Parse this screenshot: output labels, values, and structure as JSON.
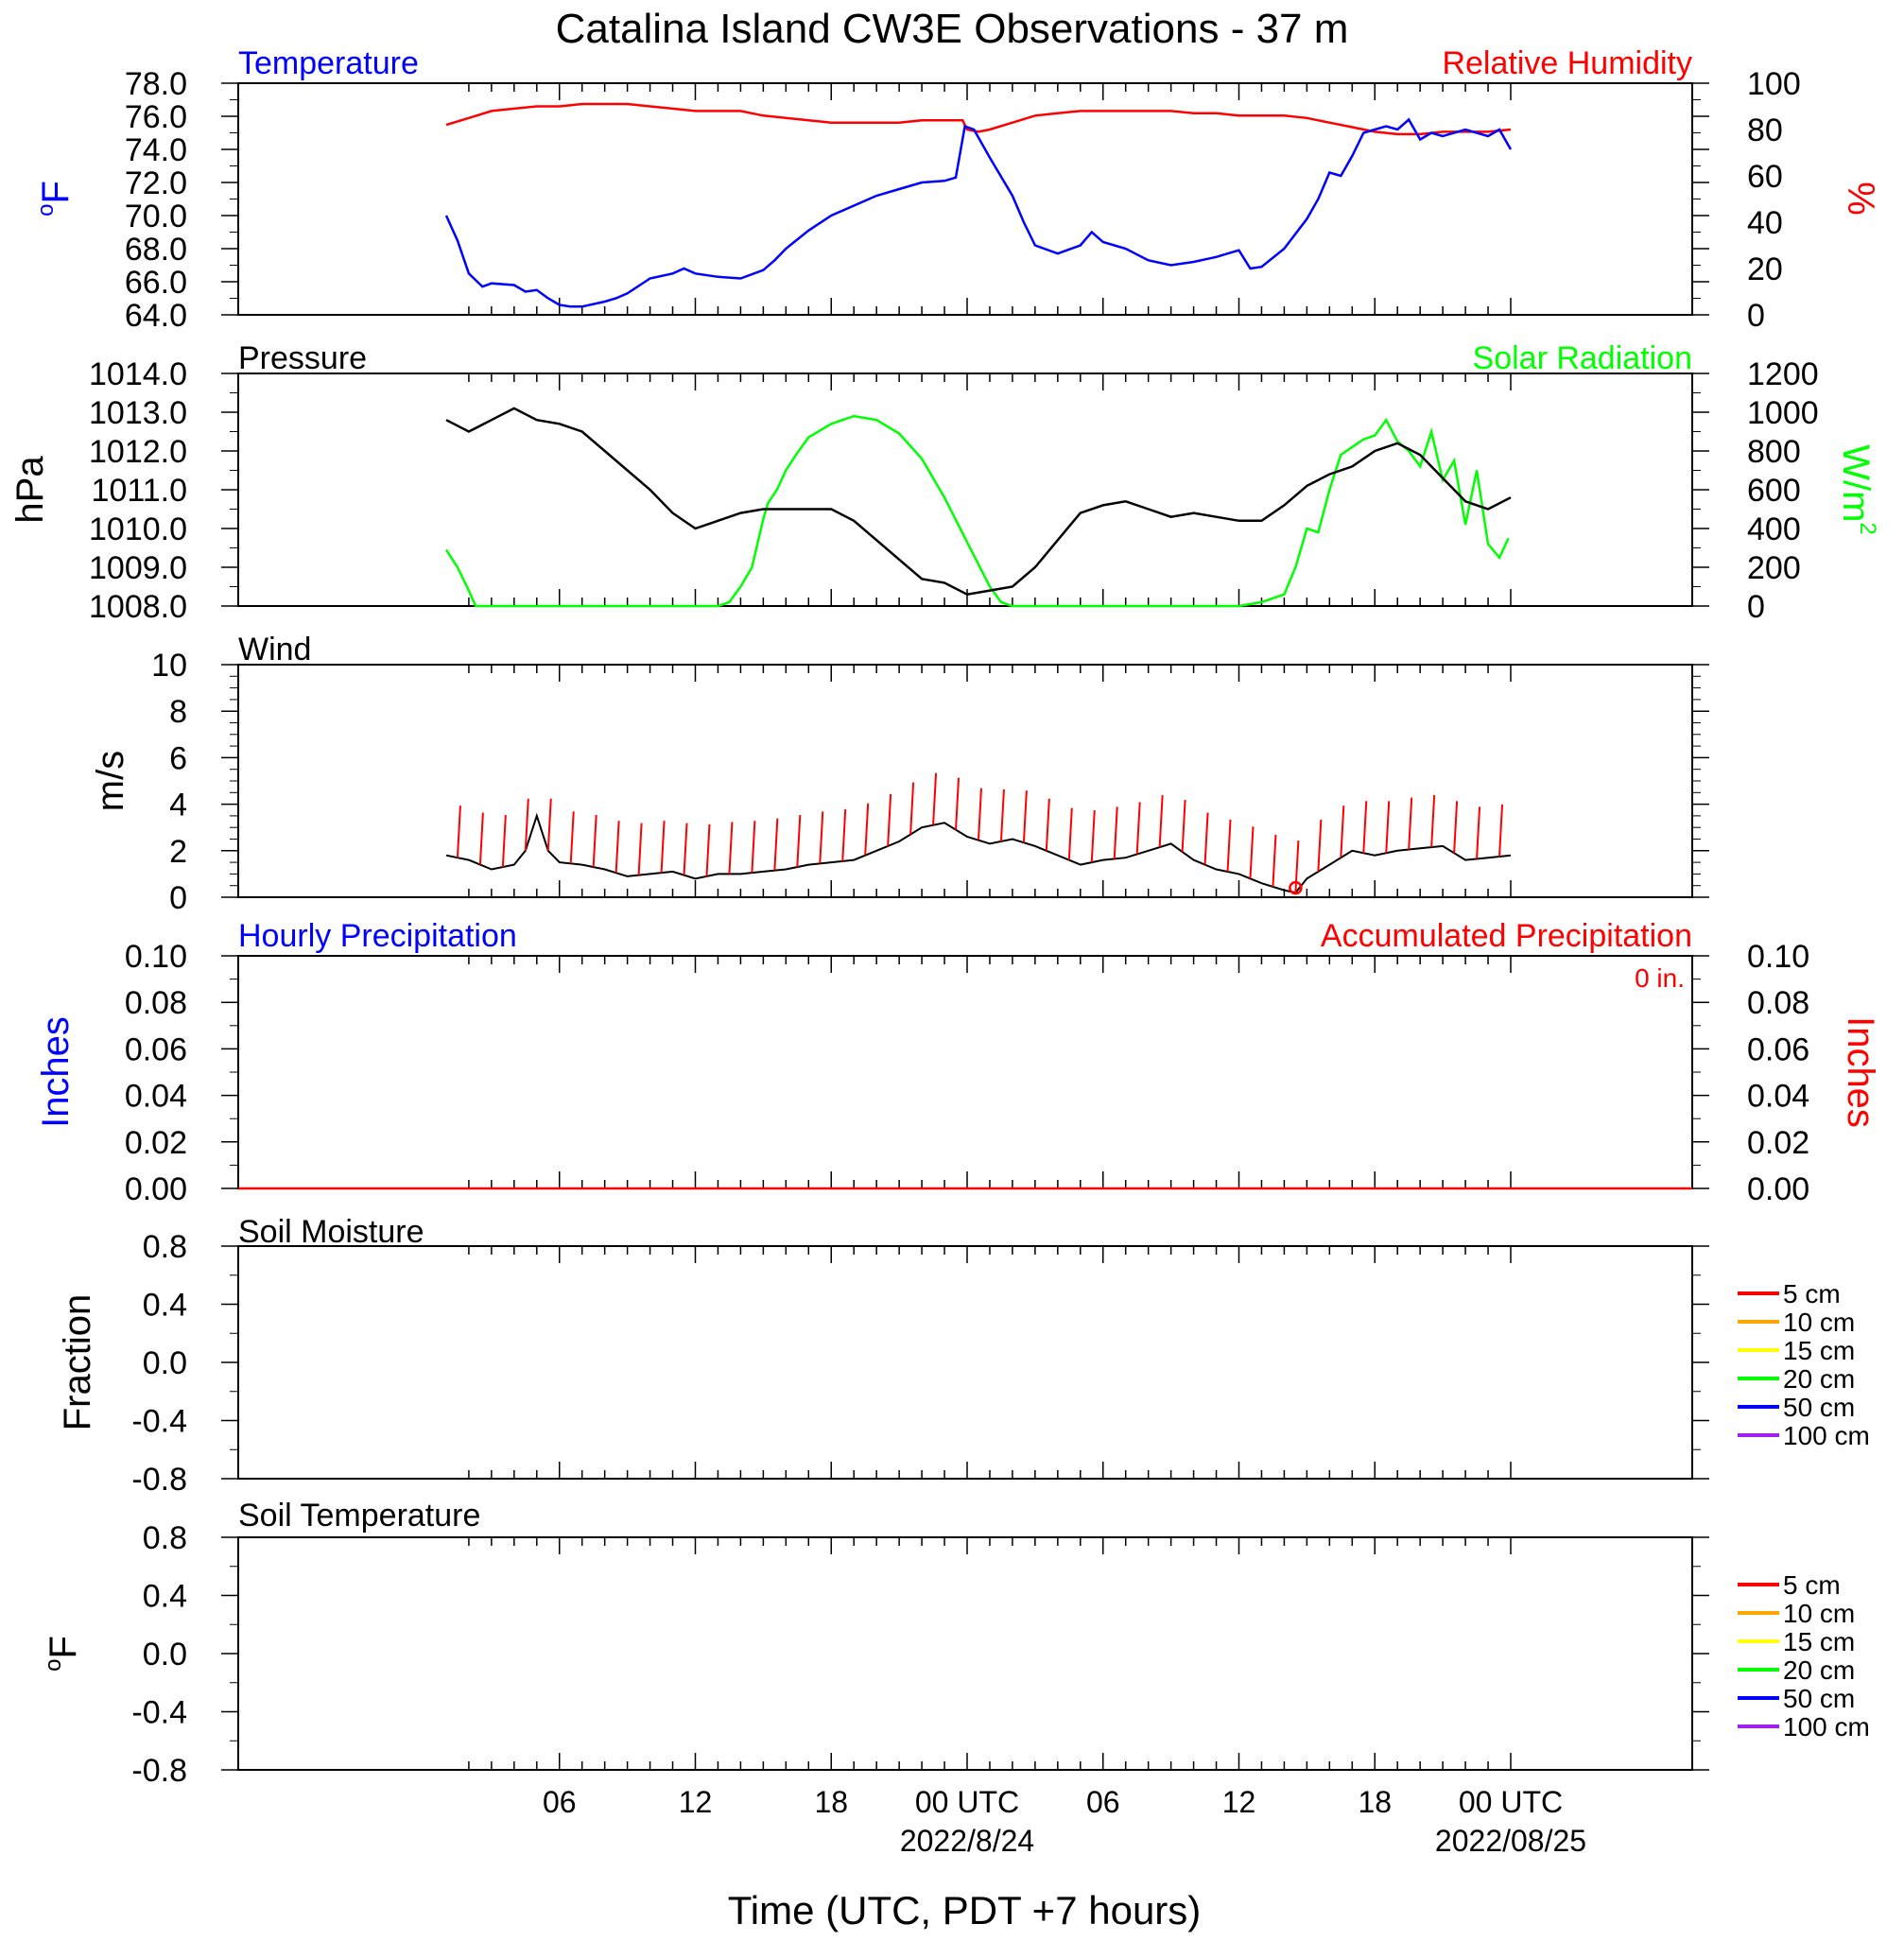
{
  "title": "Catalina Island CW3E Observations - 37 m",
  "x_axis": {
    "title": "Time (UTC, PDT +7 hours)",
    "tick_labels": [
      {
        "hour": 6,
        "text": "06",
        "date": ""
      },
      {
        "hour": 12,
        "text": "12",
        "date": ""
      },
      {
        "hour": 18,
        "text": "18",
        "date": ""
      },
      {
        "hour": 24,
        "text": "00 UTC",
        "date": "2022/8/24"
      },
      {
        "hour": 30,
        "text": "06",
        "date": ""
      },
      {
        "hour": 36,
        "text": "12",
        "date": ""
      },
      {
        "hour": 42,
        "text": "18",
        "date": ""
      },
      {
        "hour": 48,
        "text": "00 UTC",
        "date": "2022/08/25"
      }
    ],
    "range_hours": [
      1,
      48.05
    ]
  },
  "colors": {
    "temperature": "#0000ff",
    "humidity": "#ff0000",
    "pressure": "#000000",
    "solar": "#00ff00",
    "wind": "#000000",
    "wind_barbs": "#ff0000",
    "hourly_precip": "#0000ff",
    "accum_precip": "#ff0000"
  },
  "panels": {
    "temp_rh": {
      "left_title": "Temperature",
      "right_title": "Relative Humidity",
      "left_units": "oF",
      "right_units": "%",
      "left_ticks": [
        "64.0",
        "66.0",
        "68.0",
        "70.0",
        "72.0",
        "74.0",
        "76.0",
        "78.0"
      ],
      "right_ticks": [
        "0",
        "20",
        "40",
        "60",
        "80",
        "100"
      ]
    },
    "pressure_solar": {
      "left_title": "Pressure",
      "right_title": "Solar Radiation",
      "left_units": "hPa",
      "right_units": "W/m",
      "right_units_sup": "2",
      "left_ticks": [
        "1008.0",
        "1009.0",
        "1010.0",
        "1011.0",
        "1012.0",
        "1013.0",
        "1014.0"
      ],
      "right_ticks": [
        "0",
        "200",
        "400",
        "600",
        "800",
        "1000",
        "1200"
      ]
    },
    "wind": {
      "left_title": "Wind",
      "left_units": "m/s",
      "left_ticks": [
        "0",
        "2",
        "4",
        "6",
        "8",
        "10"
      ]
    },
    "precip": {
      "left_title": "Hourly Precipitation",
      "right_title": "Accumulated Precipitation",
      "total_label": "0 in.",
      "left_units": "Inches",
      "right_units": "Inches",
      "left_ticks": [
        "0.00",
        "0.02",
        "0.04",
        "0.06",
        "0.08",
        "0.10"
      ],
      "right_ticks": [
        "0.00",
        "0.02",
        "0.04",
        "0.06",
        "0.08",
        "0.10"
      ]
    },
    "soil_moisture": {
      "left_title": "Soil Moisture",
      "left_units": "Fraction",
      "left_ticks": [
        "-0.8",
        "-0.4",
        "0.0",
        "0.4",
        "0.8"
      ]
    },
    "soil_temp": {
      "left_title": "Soil Temperature",
      "left_units": "oF",
      "left_ticks": [
        "-0.8",
        "-0.4",
        "0.0",
        "0.4",
        "0.8"
      ]
    }
  },
  "soil_legend": [
    {
      "label": "5 cm",
      "color": "#ff0000"
    },
    {
      "label": "10 cm",
      "color": "#ffa500"
    },
    {
      "label": "15 cm",
      "color": "#ffff00"
    },
    {
      "label": "20 cm",
      "color": "#00ff00"
    },
    {
      "label": "50 cm",
      "color": "#0000ff"
    },
    {
      "label": "100 cm",
      "color": "#a020f0"
    }
  ],
  "chart_data": [
    {
      "type": "line",
      "title": "Temperature / Relative Humidity",
      "x_units": "hours since 2022-08-23 00 UTC",
      "series": [
        {
          "name": "Temperature",
          "axis": "left",
          "ylim": [
            64,
            78
          ],
          "x": [
            1,
            1.5,
            2,
            2.6,
            3,
            4,
            4.5,
            5,
            5.5,
            6,
            6.5,
            7,
            8,
            8.5,
            9,
            10,
            11,
            11.5,
            12,
            13,
            14,
            15,
            15.5,
            16,
            17,
            18,
            19,
            20,
            21,
            22,
            23,
            23.5,
            23.9,
            24.3,
            25,
            26,
            26.5,
            27,
            28,
            29,
            29.5,
            30,
            30.5,
            31,
            32,
            33,
            34,
            35,
            35.5,
            36,
            36.5,
            37,
            38,
            39,
            39.5,
            40,
            40.5,
            41,
            41.5,
            42,
            42.5,
            43,
            43.5,
            44,
            44.5,
            45,
            46,
            47,
            47.5,
            48
          ],
          "y": [
            70.0,
            68.5,
            66.5,
            65.7,
            65.9,
            65.8,
            65.4,
            65.5,
            65.0,
            64.6,
            64.5,
            64.5,
            64.8,
            65.0,
            65.3,
            66.2,
            66.5,
            66.8,
            66.5,
            66.3,
            66.2,
            66.7,
            67.3,
            68.0,
            69.1,
            70.0,
            70.6,
            71.2,
            71.6,
            72.0,
            72.1,
            72.3,
            75.4,
            75.2,
            73.5,
            71.2,
            69.6,
            68.2,
            67.7,
            68.2,
            69.0,
            68.4,
            68.2,
            68.0,
            67.3,
            67.0,
            67.2,
            67.5,
            67.7,
            67.9,
            66.8,
            66.9,
            68.0,
            69.8,
            71.0,
            72.6,
            72.4,
            73.6,
            75.0,
            75.2,
            75.4,
            75.2,
            75.8,
            74.6,
            75.0,
            74.8,
            75.2,
            74.8,
            75.2,
            74.0
          ]
        },
        {
          "name": "Relative Humidity",
          "axis": "right",
          "ylim": [
            0,
            100
          ],
          "x": [
            1,
            2,
            3,
            4,
            5,
            6,
            7,
            8,
            9,
            10,
            11,
            12,
            13,
            14,
            15,
            16,
            17,
            18,
            19,
            20,
            21,
            22,
            23,
            23.8,
            24,
            24.5,
            25,
            26,
            27,
            28,
            29,
            30,
            31,
            32,
            33,
            34,
            35,
            36,
            37,
            38,
            39,
            40,
            41,
            42,
            43,
            44,
            45,
            46,
            47,
            48
          ],
          "y": [
            82,
            85,
            88,
            89,
            90,
            90,
            91,
            91,
            91,
            90,
            89,
            88,
            88,
            88,
            86,
            85,
            84,
            83,
            83,
            83,
            83,
            84,
            84,
            84,
            80,
            79,
            80,
            83,
            86,
            87,
            88,
            88,
            88,
            88,
            88,
            87,
            87,
            86,
            86,
            86,
            85,
            83,
            81,
            79,
            78,
            78,
            79,
            79,
            79,
            80
          ]
        }
      ]
    },
    {
      "type": "line",
      "title": "Pressure / Solar Radiation",
      "x_units": "hours since 2022-08-23 00 UTC",
      "series": [
        {
          "name": "Pressure",
          "axis": "left",
          "ylim": [
            1008,
            1014
          ],
          "x": [
            1,
            2,
            3,
            4,
            5,
            6,
            7,
            8,
            9,
            10,
            11,
            12,
            13,
            14,
            15,
            16,
            17,
            18,
            19,
            20,
            21,
            22,
            23,
            24,
            25,
            26,
            27,
            28,
            29,
            30,
            31,
            32,
            33,
            34,
            35,
            36,
            37,
            38,
            39,
            40,
            41,
            42,
            43,
            44,
            45,
            46,
            47,
            48
          ],
          "y": [
            1012.8,
            1012.5,
            1012.8,
            1013.1,
            1012.8,
            1012.7,
            1012.5,
            1012.0,
            1011.5,
            1011.0,
            1010.4,
            1010.0,
            1010.2,
            1010.4,
            1010.5,
            1010.5,
            1010.5,
            1010.5,
            1010.2,
            1009.7,
            1009.2,
            1008.7,
            1008.6,
            1008.3,
            1008.4,
            1008.5,
            1009.0,
            1009.7,
            1010.4,
            1010.6,
            1010.7,
            1010.5,
            1010.3,
            1010.4,
            1010.3,
            1010.2,
            1010.2,
            1010.6,
            1011.1,
            1011.4,
            1011.6,
            1012.0,
            1012.2,
            1011.9,
            1011.3,
            1010.7,
            1010.5,
            1010.8
          ]
        },
        {
          "name": "Solar Radiation",
          "axis": "right",
          "ylim": [
            0,
            1200
          ],
          "x": [
            1,
            1.5,
            2,
            2.3,
            3,
            6,
            9,
            12,
            13,
            13.5,
            14,
            14.5,
            15,
            15.2,
            15.6,
            16,
            16.5,
            17,
            18,
            19,
            20,
            21,
            22,
            23,
            24,
            25,
            25.5,
            26,
            27,
            30,
            33,
            36,
            37,
            38,
            38.5,
            39,
            39.5,
            40,
            40.5,
            41,
            41.5,
            42,
            42.5,
            43,
            43.5,
            44,
            44.5,
            45,
            45.5,
            46,
            46.5,
            47,
            47.5,
            47.9
          ],
          "y": [
            290,
            200,
            80,
            0,
            0,
            0,
            0,
            0,
            0,
            20,
            100,
            200,
            450,
            530,
            600,
            700,
            790,
            870,
            940,
            980,
            960,
            890,
            760,
            560,
            330,
            100,
            20,
            0,
            0,
            0,
            0,
            0,
            20,
            60,
            200,
            400,
            380,
            600,
            780,
            820,
            860,
            880,
            960,
            850,
            800,
            720,
            900,
            650,
            750,
            420,
            700,
            320,
            250,
            350
          ]
        }
      ]
    },
    {
      "type": "line",
      "title": "Wind",
      "x_units": "hours since 2022-08-23 00 UTC",
      "series": [
        {
          "name": "Wind",
          "ylim": [
            0,
            10
          ],
          "x": [
            1,
            2,
            3,
            4,
            4.5,
            5,
            5.5,
            6,
            7,
            8,
            9,
            10,
            11,
            12,
            13,
            14,
            15,
            16,
            17,
            18,
            19,
            20,
            21,
            22,
            23,
            24,
            25,
            26,
            27,
            28,
            29,
            30,
            31,
            32,
            33,
            34,
            35,
            36,
            37,
            38,
            38.5,
            39,
            40,
            41,
            42,
            43,
            44,
            45,
            46,
            47,
            48
          ],
          "y": [
            1.8,
            1.6,
            1.2,
            1.4,
            2.0,
            3.5,
            2.0,
            1.5,
            1.4,
            1.2,
            0.9,
            1.0,
            1.1,
            0.8,
            1.0,
            1.0,
            1.1,
            1.2,
            1.4,
            1.5,
            1.6,
            2.0,
            2.4,
            3.0,
            3.2,
            2.6,
            2.3,
            2.5,
            2.2,
            1.8,
            1.4,
            1.6,
            1.7,
            2.0,
            2.3,
            1.6,
            1.2,
            1.0,
            0.6,
            0.3,
            0.2,
            0.8,
            1.4,
            2.0,
            1.8,
            2.0,
            2.1,
            2.2,
            1.6,
            1.7,
            1.8
          ]
        }
      ]
    },
    {
      "type": "line",
      "title": "Hourly / Accumulated Precipitation",
      "series": [
        {
          "name": "Hourly Precipitation",
          "x": [
            1,
            48
          ],
          "y": [
            0,
            0
          ]
        },
        {
          "name": "Accumulated Precipitation",
          "x": [
            1,
            48
          ],
          "y": [
            0,
            0
          ]
        }
      ]
    }
  ]
}
